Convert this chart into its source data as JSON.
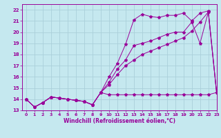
{
  "xlabel": "Windchill (Refroidissement éolien,°C)",
  "ylabel": "",
  "bg_color": "#c5e8ef",
  "line_color": "#990099",
  "grid_color": "#aacfda",
  "xlim": [
    -0.5,
    23
  ],
  "ylim": [
    13,
    22.5
  ],
  "xticks": [
    0,
    1,
    2,
    3,
    4,
    5,
    6,
    7,
    8,
    9,
    10,
    11,
    12,
    13,
    14,
    15,
    16,
    17,
    18,
    19,
    20,
    21,
    22,
    23
  ],
  "yticks": [
    13,
    14,
    15,
    16,
    17,
    18,
    19,
    20,
    21,
    22
  ],
  "series": [
    [
      14.0,
      13.3,
      13.7,
      14.2,
      14.1,
      14.0,
      13.9,
      13.8,
      13.5,
      14.6,
      14.4,
      14.4,
      14.4,
      14.4,
      14.4,
      14.4,
      14.4,
      14.4,
      14.4,
      14.4,
      14.4,
      14.4,
      14.4,
      14.6
    ],
    [
      14.0,
      13.3,
      13.7,
      14.2,
      14.1,
      14.0,
      13.9,
      13.8,
      13.5,
      14.6,
      15.3,
      16.2,
      17.0,
      17.5,
      18.0,
      18.3,
      18.6,
      18.9,
      19.2,
      19.5,
      20.1,
      20.9,
      21.8,
      14.6
    ],
    [
      14.0,
      13.3,
      13.7,
      14.2,
      14.1,
      14.0,
      13.9,
      13.8,
      13.5,
      14.6,
      15.5,
      16.7,
      17.5,
      18.8,
      19.0,
      19.2,
      19.5,
      19.8,
      20.0,
      20.0,
      20.9,
      19.0,
      21.8,
      14.6
    ],
    [
      14.0,
      13.3,
      13.7,
      14.2,
      14.1,
      14.0,
      13.9,
      13.8,
      13.5,
      14.6,
      16.0,
      17.2,
      18.9,
      21.1,
      21.6,
      21.4,
      21.3,
      21.5,
      21.5,
      21.7,
      21.0,
      21.7,
      21.9,
      14.6
    ]
  ]
}
